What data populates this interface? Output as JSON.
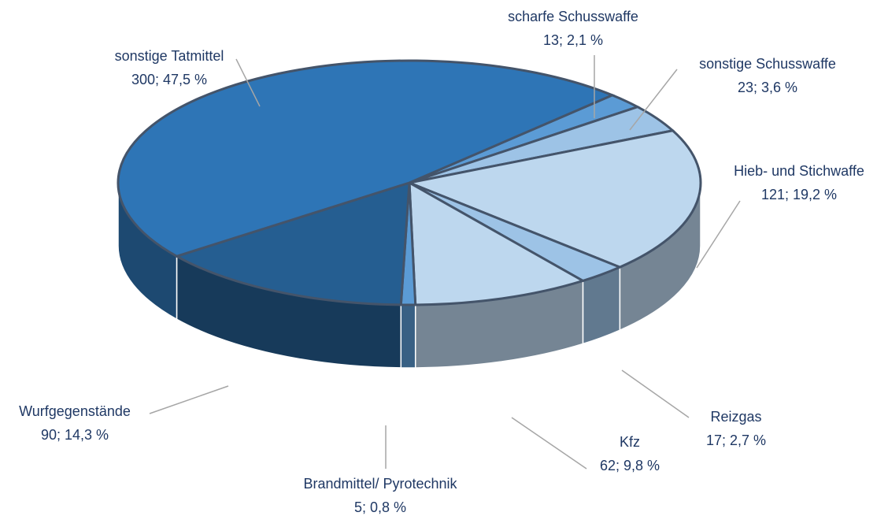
{
  "chart_data": {
    "type": "pie",
    "labels": [
      "scharfe Schusswaffe",
      "sonstige Schusswaffe",
      "Hieb- und Stichwaffe",
      "Reizgas",
      "Kfz",
      "Brandmittel/ Pyrotechnik",
      "Wurfgegenstände",
      "sonstige Tatmittel"
    ],
    "values": [
      13,
      23,
      121,
      17,
      62,
      5,
      90,
      300
    ],
    "value_labels": [
      "13; 2,1 %",
      "23; 3,6 %",
      "121; 19,2 %",
      "17; 2,7 %",
      "62; 9,8 %",
      "5; 0,8 %",
      "90; 14,3 %",
      "300; 47,5 %"
    ],
    "colors": [
      "#5b9bd5",
      "#9dc3e6",
      "#bdd7ee",
      "#9dc3e6",
      "#bdd7ee",
      "#5b9bd5",
      "#255e91",
      "#2e75b6"
    ]
  }
}
